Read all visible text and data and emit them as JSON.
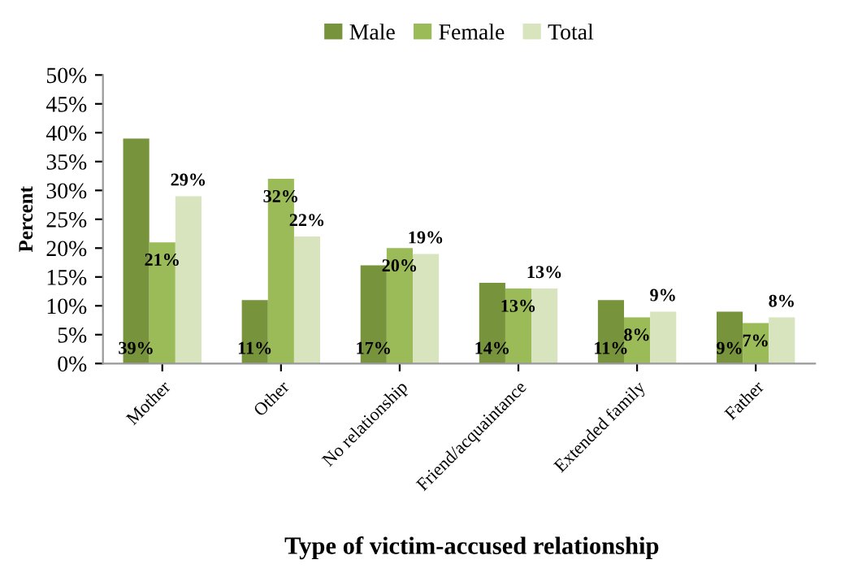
{
  "chart_data": {
    "type": "bar",
    "xlabel": "Type of victim-accused relationship",
    "ylabel": "Percent",
    "categories": [
      "Mother",
      "Other",
      "No relationship",
      "Friend/acquaintance",
      "Extended family",
      "Father"
    ],
    "series": [
      {
        "name": "Male",
        "color": "#77933c",
        "values": [
          39,
          11,
          17,
          14,
          11,
          9
        ],
        "value_labels": [
          "39%",
          "11%",
          "17%",
          "14%",
          "11%",
          "9%"
        ]
      },
      {
        "name": "Female",
        "color": "#9bbb59",
        "values": [
          21,
          32,
          20,
          13,
          8,
          7
        ],
        "value_labels": [
          "21%",
          "32%",
          "20%",
          "13%",
          "8%",
          "7%"
        ]
      },
      {
        "name": "Total",
        "color": "#d7e4bd",
        "values": [
          29,
          22,
          19,
          13,
          9,
          8
        ],
        "value_labels": [
          "29%",
          "22%",
          "19%",
          "13%",
          "9%",
          "8%"
        ]
      }
    ],
    "legend": "top",
    "grid": false,
    "ylim": [
      0,
      50
    ],
    "yticks": [
      {
        "value": 0,
        "label": "0%"
      },
      {
        "value": 5,
        "label": "5%"
      },
      {
        "value": 10,
        "label": "10%"
      },
      {
        "value": 15,
        "label": "15%"
      },
      {
        "value": 20,
        "label": "20%"
      },
      {
        "value": 25,
        "label": "25%"
      },
      {
        "value": 30,
        "label": "30%"
      },
      {
        "value": 35,
        "label": "35%"
      },
      {
        "value": 40,
        "label": "40%"
      },
      {
        "value": 45,
        "label": "45%"
      },
      {
        "value": 50,
        "label": "50%"
      }
    ]
  }
}
